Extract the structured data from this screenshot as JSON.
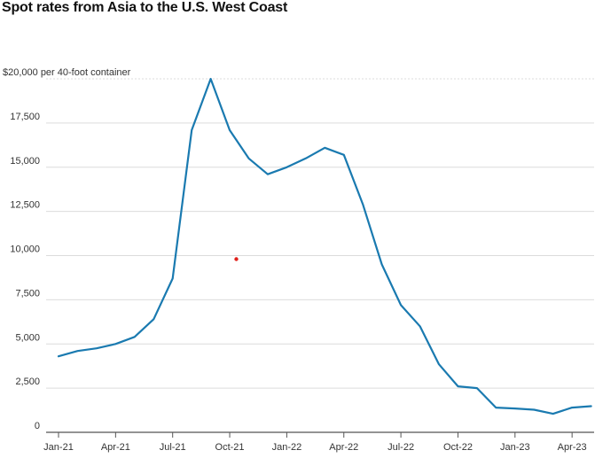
{
  "chart_data": {
    "type": "line",
    "title": "Spot rates from Asia to the U.S. West Coast",
    "unit_label": "$20,000 per 40-foot container",
    "ylim": [
      0,
      20000
    ],
    "y_ticks": [
      {
        "value": 20000,
        "label": "$20,000"
      },
      {
        "value": 17500,
        "label": "17,500"
      },
      {
        "value": 15000,
        "label": "15,000"
      },
      {
        "value": 12500,
        "label": "12,500"
      },
      {
        "value": 10000,
        "label": "10,000"
      },
      {
        "value": 7500,
        "label": "7,500"
      },
      {
        "value": 5000,
        "label": "5,000"
      },
      {
        "value": 2500,
        "label": "2,500"
      },
      {
        "value": 0,
        "label": "0"
      }
    ],
    "x_ticks": [
      {
        "date": "2021-01",
        "label": "Jan-21"
      },
      {
        "date": "2021-04",
        "label": "Apr-21"
      },
      {
        "date": "2021-07",
        "label": "Jul-21"
      },
      {
        "date": "2021-10",
        "label": "Oct-21"
      },
      {
        "date": "2022-01",
        "label": "Jan-22"
      },
      {
        "date": "2022-04",
        "label": "Apr-22"
      },
      {
        "date": "2022-07",
        "label": "Jul-22"
      },
      {
        "date": "2022-10",
        "label": "Oct-22"
      },
      {
        "date": "2023-01",
        "label": "Jan-23"
      },
      {
        "date": "2023-04",
        "label": "Apr-23"
      }
    ],
    "grid": true,
    "line_color": "#1a7ab0",
    "series": [
      {
        "x": [
          "2021-01",
          "2021-02",
          "2021-03",
          "2021-04",
          "2021-05",
          "2021-06",
          "2021-07",
          "2021-08",
          "2021-09",
          "2021-10",
          "2021-11",
          "2021-12",
          "2022-01",
          "2022-02",
          "2022-03",
          "2022-04",
          "2022-05",
          "2022-06",
          "2022-07",
          "2022-08",
          "2022-09",
          "2022-10",
          "2022-11",
          "2022-12",
          "2023-01",
          "2023-02",
          "2023-03",
          "2023-04",
          "2023-05"
        ],
        "values": [
          4300,
          4600,
          4750,
          5000,
          5400,
          6400,
          8700,
          17100,
          20000,
          17100,
          15500,
          14600,
          15000,
          15500,
          16100,
          15700,
          12900,
          9500,
          7200,
          6000,
          3850,
          2600,
          2500,
          1400,
          1350,
          1280,
          1050,
          1400,
          1480
        ]
      }
    ]
  },
  "annotation_dot_color": "#e0201b"
}
